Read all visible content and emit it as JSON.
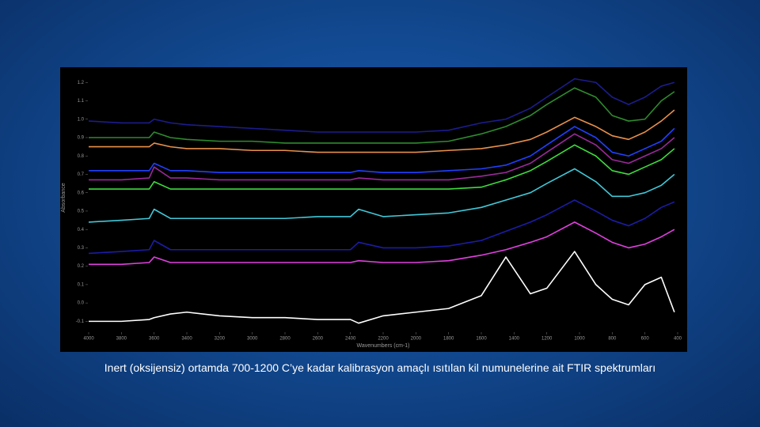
{
  "chart_data": {
    "type": "line",
    "caption": "Inert (oksijensiz) ortamda 700-1200 C’ye kadar kalibrasyon amaçlı ısıtılan kil numunelerine ait FTIR spektrumları",
    "xlabel": "Wavenumbers (cm-1)",
    "ylabel": "Absorbance",
    "x": [
      4000,
      3800,
      3630,
      3600,
      3500,
      3400,
      3200,
      3000,
      2800,
      2600,
      2400,
      2350,
      2200,
      2000,
      1800,
      1600,
      1450,
      1300,
      1200,
      1030,
      900,
      800,
      700,
      600,
      500,
      420
    ],
    "xlim": [
      4000,
      400
    ],
    "xticks": [
      4000,
      3800,
      3600,
      3400,
      3200,
      3000,
      2800,
      2600,
      2400,
      2200,
      2000,
      1800,
      1600,
      1400,
      1200,
      1000,
      800,
      600,
      400
    ],
    "ylim": [
      -0.15,
      1.27
    ],
    "yticks": [
      -0.1,
      {
        "value": 0,
        "label": "0.0"
      },
      0.1,
      0.2,
      0.3,
      0.4,
      0.5,
      0.6,
      0.7,
      0.8,
      0.9,
      {
        "value": 1,
        "label": "1.0"
      },
      1.1,
      1.2
    ],
    "series": [
      {
        "color": "#1c1c8e",
        "values": [
          0.99,
          0.98,
          0.98,
          1.0,
          0.98,
          0.97,
          0.96,
          0.95,
          0.94,
          0.93,
          0.93,
          0.93,
          0.93,
          0.93,
          0.94,
          0.98,
          1.0,
          1.06,
          1.12,
          1.22,
          1.2,
          1.12,
          1.08,
          1.12,
          1.18,
          1.2
        ]
      },
      {
        "color": "#2e8b2e",
        "values": [
          0.9,
          0.9,
          0.9,
          0.93,
          0.9,
          0.89,
          0.88,
          0.88,
          0.87,
          0.87,
          0.87,
          0.87,
          0.87,
          0.87,
          0.88,
          0.92,
          0.96,
          1.02,
          1.08,
          1.17,
          1.12,
          1.02,
          0.99,
          1.0,
          1.1,
          1.15
        ]
      },
      {
        "color": "#e8904a",
        "values": [
          0.85,
          0.85,
          0.85,
          0.87,
          0.85,
          0.84,
          0.84,
          0.83,
          0.83,
          0.82,
          0.82,
          0.82,
          0.82,
          0.82,
          0.83,
          0.84,
          0.86,
          0.89,
          0.93,
          1.01,
          0.96,
          0.91,
          0.89,
          0.93,
          0.99,
          1.05
        ]
      },
      {
        "color": "#2040ff",
        "values": [
          0.72,
          0.72,
          0.72,
          0.76,
          0.72,
          0.72,
          0.71,
          0.71,
          0.71,
          0.71,
          0.71,
          0.72,
          0.71,
          0.71,
          0.72,
          0.73,
          0.75,
          0.8,
          0.86,
          0.96,
          0.9,
          0.82,
          0.8,
          0.84,
          0.88,
          0.95
        ]
      },
      {
        "color": "#9a2a9a",
        "values": [
          0.67,
          0.67,
          0.68,
          0.74,
          0.68,
          0.68,
          0.67,
          0.67,
          0.67,
          0.67,
          0.67,
          0.68,
          0.67,
          0.67,
          0.67,
          0.69,
          0.71,
          0.76,
          0.82,
          0.92,
          0.86,
          0.78,
          0.76,
          0.8,
          0.84,
          0.9
        ]
      },
      {
        "color": "#3cdc3c",
        "values": [
          0.62,
          0.62,
          0.62,
          0.66,
          0.62,
          0.62,
          0.62,
          0.62,
          0.62,
          0.62,
          0.62,
          0.62,
          0.62,
          0.62,
          0.62,
          0.63,
          0.67,
          0.72,
          0.77,
          0.86,
          0.8,
          0.72,
          0.7,
          0.74,
          0.78,
          0.84
        ]
      },
      {
        "color": "#40c8d8",
        "values": [
          0.44,
          0.45,
          0.46,
          0.51,
          0.46,
          0.46,
          0.46,
          0.46,
          0.46,
          0.47,
          0.47,
          0.51,
          0.47,
          0.48,
          0.49,
          0.52,
          0.56,
          0.6,
          0.65,
          0.73,
          0.66,
          0.58,
          0.58,
          0.6,
          0.64,
          0.7
        ]
      },
      {
        "color": "#1c1ca6",
        "values": [
          0.27,
          0.28,
          0.29,
          0.34,
          0.29,
          0.29,
          0.29,
          0.29,
          0.29,
          0.29,
          0.29,
          0.33,
          0.3,
          0.3,
          0.31,
          0.34,
          0.39,
          0.44,
          0.48,
          0.56,
          0.5,
          0.45,
          0.42,
          0.46,
          0.52,
          0.55
        ]
      },
      {
        "color": "#e040e0",
        "values": [
          0.21,
          0.21,
          0.22,
          0.25,
          0.22,
          0.22,
          0.22,
          0.22,
          0.22,
          0.22,
          0.22,
          0.23,
          0.22,
          0.22,
          0.23,
          0.26,
          0.29,
          0.33,
          0.36,
          0.44,
          0.38,
          0.33,
          0.3,
          0.32,
          0.36,
          0.4
        ]
      },
      {
        "color": "#ffffff",
        "values": [
          -0.1,
          -0.1,
          -0.09,
          -0.08,
          -0.06,
          -0.05,
          -0.07,
          -0.08,
          -0.08,
          -0.09,
          -0.09,
          -0.11,
          -0.07,
          -0.05,
          -0.03,
          0.04,
          0.25,
          0.05,
          0.08,
          0.28,
          0.1,
          0.02,
          -0.01,
          0.1,
          0.14,
          -0.05
        ]
      }
    ]
  }
}
